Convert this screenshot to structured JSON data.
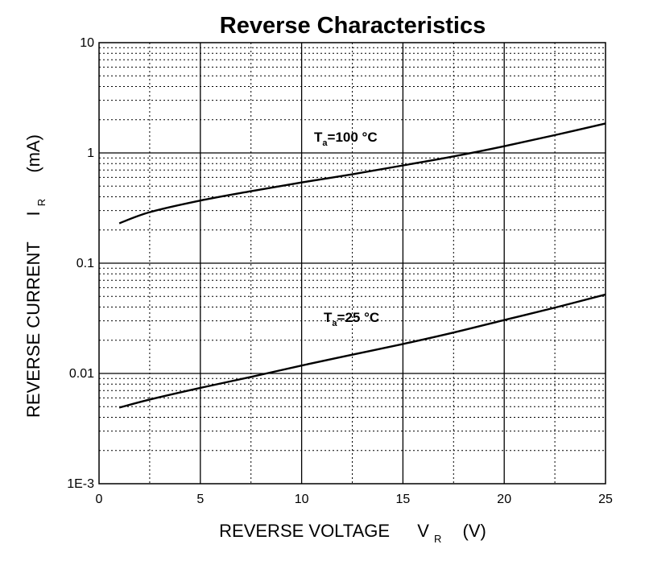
{
  "chart_data": {
    "type": "line",
    "title": "Reverse Characteristics",
    "xlabel": {
      "main": "REVERSE VOLTAGE",
      "symbol": "V",
      "subscript": "R",
      "unit": "(V)"
    },
    "ylabel": {
      "main": "REVERSE CURRENT",
      "symbol": "I",
      "subscript": "R",
      "unit": "(mA)"
    },
    "xlim": [
      0,
      25
    ],
    "ylim": [
      0.001,
      10
    ],
    "yscale": "log",
    "grid": true,
    "x_ticks": [
      0,
      5,
      10,
      15,
      20,
      25
    ],
    "x_tick_labels": [
      "0",
      "5",
      "10",
      "15",
      "20",
      "25"
    ],
    "y_ticks": [
      0.001,
      0.01,
      0.1,
      1,
      10
    ],
    "y_tick_labels": [
      "1E-3",
      "0.01",
      "0.1",
      "1",
      "10"
    ],
    "series": [
      {
        "annotation": {
          "prefix": "T",
          "subscript": "a",
          "text": "=100 °C"
        },
        "x": [
          1,
          2.5,
          5,
          7.5,
          10,
          12.5,
          15,
          17.5,
          20,
          22.5,
          25
        ],
        "y": [
          0.23,
          0.29,
          0.37,
          0.45,
          0.54,
          0.64,
          0.77,
          0.93,
          1.15,
          1.45,
          1.85
        ]
      },
      {
        "annotation": {
          "prefix": "T",
          "subscript": "a",
          "text": "=25 °C"
        },
        "x": [
          1,
          2.5,
          5,
          7.5,
          10,
          12.5,
          15,
          17.5,
          20,
          22.5,
          25
        ],
        "y": [
          0.0049,
          0.0058,
          0.0074,
          0.0093,
          0.0118,
          0.0148,
          0.0185,
          0.0235,
          0.0305,
          0.0395,
          0.052
        ]
      }
    ]
  }
}
